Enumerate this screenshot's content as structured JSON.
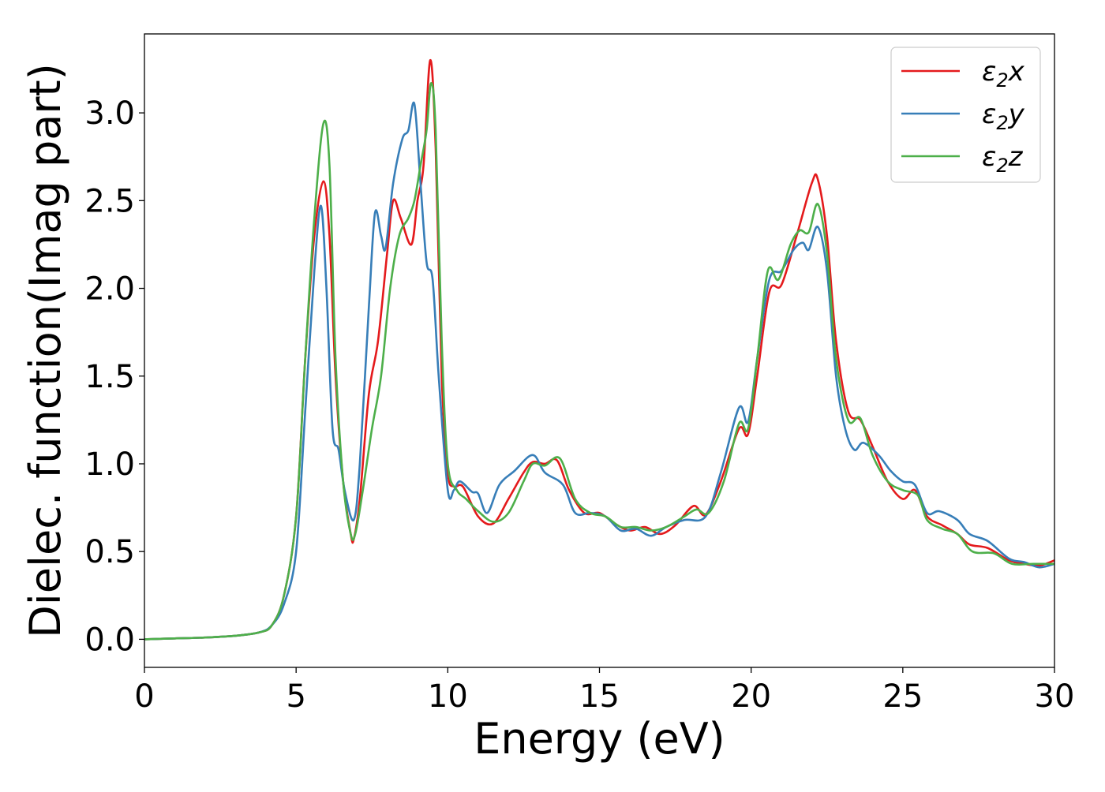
{
  "chart_data": {
    "type": "line",
    "title": "",
    "xlabel": "Energy (eV)",
    "ylabel": "Dielec. function(Imag part)",
    "xlim": [
      0,
      30
    ],
    "ylim": [
      -0.16,
      3.45
    ],
    "xticks": [
      0,
      5,
      10,
      15,
      20,
      25,
      30
    ],
    "xtick_labels": [
      "0",
      "5",
      "10",
      "15",
      "20",
      "25",
      "30"
    ],
    "yticks": [
      0.0,
      0.5,
      1.0,
      1.5,
      2.0,
      2.5,
      3.0
    ],
    "ytick_labels": [
      "0.0",
      "0.5",
      "1.0",
      "1.5",
      "2.0",
      "2.5",
      "3.0"
    ],
    "grid": false,
    "legend_position": "top-right",
    "series": [
      {
        "name": "ε₂x",
        "legend_base": "ε",
        "legend_sub": "2",
        "legend_suffix": "x",
        "color": "#e41a1c",
        "points": [
          [
            0,
            0
          ],
          [
            1,
            0.005
          ],
          [
            2,
            0.01
          ],
          [
            3,
            0.02
          ],
          [
            3.8,
            0.04
          ],
          [
            4.2,
            0.08
          ],
          [
            4.6,
            0.25
          ],
          [
            5,
            0.7
          ],
          [
            5.3,
            1.6
          ],
          [
            5.6,
            2.3
          ],
          [
            5.9,
            2.61
          ],
          [
            6.1,
            2.3
          ],
          [
            6.3,
            1.5
          ],
          [
            6.55,
            0.9
          ],
          [
            6.8,
            0.6
          ],
          [
            6.9,
            0.57
          ],
          [
            7.1,
            0.8
          ],
          [
            7.4,
            1.4
          ],
          [
            7.7,
            1.7
          ],
          [
            8.0,
            2.2
          ],
          [
            8.2,
            2.5
          ],
          [
            8.45,
            2.4
          ],
          [
            8.8,
            2.25
          ],
          [
            9.0,
            2.5
          ],
          [
            9.2,
            2.7
          ],
          [
            9.42,
            3.3
          ],
          [
            9.6,
            2.8
          ],
          [
            9.8,
            1.5
          ],
          [
            10.0,
            0.95
          ],
          [
            10.2,
            0.87
          ],
          [
            10.5,
            0.87
          ],
          [
            11.0,
            0.7
          ],
          [
            11.5,
            0.66
          ],
          [
            12.0,
            0.8
          ],
          [
            12.5,
            0.95
          ],
          [
            12.8,
            1.01
          ],
          [
            13.2,
            1.0
          ],
          [
            13.6,
            1.02
          ],
          [
            14.0,
            0.85
          ],
          [
            14.5,
            0.72
          ],
          [
            15.0,
            0.72
          ],
          [
            15.5,
            0.66
          ],
          [
            16.0,
            0.62
          ],
          [
            16.5,
            0.64
          ],
          [
            17.0,
            0.6
          ],
          [
            17.5,
            0.65
          ],
          [
            18.1,
            0.76
          ],
          [
            18.5,
            0.71
          ],
          [
            19.0,
            0.9
          ],
          [
            19.6,
            1.2
          ],
          [
            19.9,
            1.17
          ],
          [
            20.2,
            1.5
          ],
          [
            20.6,
            1.98
          ],
          [
            21.0,
            2.02
          ],
          [
            21.5,
            2.3
          ],
          [
            22.0,
            2.6
          ],
          [
            22.2,
            2.62
          ],
          [
            22.5,
            2.3
          ],
          [
            22.8,
            1.7
          ],
          [
            23.2,
            1.3
          ],
          [
            23.6,
            1.25
          ],
          [
            24.0,
            1.1
          ],
          [
            24.5,
            0.9
          ],
          [
            25.0,
            0.8
          ],
          [
            25.4,
            0.85
          ],
          [
            25.8,
            0.7
          ],
          [
            26.3,
            0.65
          ],
          [
            26.8,
            0.6
          ],
          [
            27.2,
            0.54
          ],
          [
            27.8,
            0.52
          ],
          [
            28.5,
            0.45
          ],
          [
            29.0,
            0.43
          ],
          [
            29.5,
            0.42
          ],
          [
            30,
            0.45
          ]
        ]
      },
      {
        "name": "ε₂y",
        "legend_base": "ε",
        "legend_sub": "2",
        "legend_suffix": "y",
        "color": "#377eb8",
        "points": [
          [
            0,
            0
          ],
          [
            1,
            0.005
          ],
          [
            2,
            0.01
          ],
          [
            3,
            0.02
          ],
          [
            3.8,
            0.04
          ],
          [
            4.2,
            0.08
          ],
          [
            4.6,
            0.2
          ],
          [
            5,
            0.5
          ],
          [
            5.3,
            1.3
          ],
          [
            5.6,
            2.1
          ],
          [
            5.82,
            2.47
          ],
          [
            6.0,
            2.0
          ],
          [
            6.2,
            1.2
          ],
          [
            6.4,
            1.08
          ],
          [
            6.6,
            0.85
          ],
          [
            6.9,
            0.68
          ],
          [
            7.1,
            1.0
          ],
          [
            7.4,
            1.9
          ],
          [
            7.6,
            2.43
          ],
          [
            7.8,
            2.3
          ],
          [
            7.95,
            2.23
          ],
          [
            8.2,
            2.6
          ],
          [
            8.5,
            2.85
          ],
          [
            8.7,
            2.9
          ],
          [
            8.9,
            3.05
          ],
          [
            9.1,
            2.6
          ],
          [
            9.3,
            2.15
          ],
          [
            9.5,
            2.05
          ],
          [
            9.7,
            1.5
          ],
          [
            10.0,
            0.85
          ],
          [
            10.2,
            0.85
          ],
          [
            10.4,
            0.9
          ],
          [
            10.8,
            0.84
          ],
          [
            11.0,
            0.83
          ],
          [
            11.3,
            0.72
          ],
          [
            11.7,
            0.88
          ],
          [
            12.2,
            0.96
          ],
          [
            12.8,
            1.05
          ],
          [
            13.2,
            0.95
          ],
          [
            13.8,
            0.88
          ],
          [
            14.2,
            0.72
          ],
          [
            14.7,
            0.72
          ],
          [
            15.2,
            0.7
          ],
          [
            15.7,
            0.62
          ],
          [
            16.2,
            0.63
          ],
          [
            16.7,
            0.59
          ],
          [
            17.2,
            0.64
          ],
          [
            17.8,
            0.68
          ],
          [
            18.5,
            0.7
          ],
          [
            19.0,
            0.95
          ],
          [
            19.6,
            1.32
          ],
          [
            19.9,
            1.24
          ],
          [
            20.2,
            1.6
          ],
          [
            20.6,
            2.05
          ],
          [
            21.0,
            2.1
          ],
          [
            21.4,
            2.22
          ],
          [
            21.7,
            2.26
          ],
          [
            21.9,
            2.22
          ],
          [
            22.2,
            2.35
          ],
          [
            22.5,
            2.1
          ],
          [
            22.8,
            1.5
          ],
          [
            23.1,
            1.2
          ],
          [
            23.4,
            1.08
          ],
          [
            23.7,
            1.12
          ],
          [
            24.2,
            1.05
          ],
          [
            24.6,
            0.96
          ],
          [
            25.0,
            0.9
          ],
          [
            25.4,
            0.88
          ],
          [
            25.8,
            0.72
          ],
          [
            26.2,
            0.73
          ],
          [
            26.8,
            0.68
          ],
          [
            27.2,
            0.6
          ],
          [
            27.8,
            0.56
          ],
          [
            28.5,
            0.46
          ],
          [
            29.0,
            0.44
          ],
          [
            29.5,
            0.41
          ],
          [
            30,
            0.43
          ]
        ]
      },
      {
        "name": "ε₂z",
        "legend_base": "ε",
        "legend_sub": "2",
        "legend_suffix": "z",
        "color": "#4daf4a",
        "points": [
          [
            0,
            0
          ],
          [
            1,
            0.005
          ],
          [
            2,
            0.01
          ],
          [
            3,
            0.02
          ],
          [
            3.8,
            0.04
          ],
          [
            4.2,
            0.08
          ],
          [
            4.6,
            0.25
          ],
          [
            5,
            0.7
          ],
          [
            5.3,
            1.6
          ],
          [
            5.6,
            2.4
          ],
          [
            5.9,
            2.94
          ],
          [
            6.1,
            2.7
          ],
          [
            6.3,
            1.6
          ],
          [
            6.55,
            0.9
          ],
          [
            6.8,
            0.6
          ],
          [
            6.95,
            0.6
          ],
          [
            7.2,
            0.85
          ],
          [
            7.5,
            1.2
          ],
          [
            7.8,
            1.5
          ],
          [
            8.1,
            2.0
          ],
          [
            8.4,
            2.3
          ],
          [
            8.7,
            2.4
          ],
          [
            8.9,
            2.5
          ],
          [
            9.1,
            2.7
          ],
          [
            9.3,
            2.9
          ],
          [
            9.45,
            3.17
          ],
          [
            9.6,
            2.9
          ],
          [
            9.8,
            1.7
          ],
          [
            10.0,
            1.0
          ],
          [
            10.3,
            0.85
          ],
          [
            10.6,
            0.8
          ],
          [
            11.0,
            0.73
          ],
          [
            11.5,
            0.67
          ],
          [
            12.0,
            0.72
          ],
          [
            12.5,
            0.9
          ],
          [
            12.8,
            1.0
          ],
          [
            13.2,
            0.99
          ],
          [
            13.7,
            1.03
          ],
          [
            14.2,
            0.8
          ],
          [
            14.7,
            0.72
          ],
          [
            15.2,
            0.7
          ],
          [
            15.7,
            0.64
          ],
          [
            16.2,
            0.64
          ],
          [
            16.7,
            0.62
          ],
          [
            17.2,
            0.64
          ],
          [
            17.8,
            0.7
          ],
          [
            18.2,
            0.74
          ],
          [
            18.6,
            0.72
          ],
          [
            19.1,
            0.9
          ],
          [
            19.6,
            1.23
          ],
          [
            19.9,
            1.2
          ],
          [
            20.2,
            1.6
          ],
          [
            20.55,
            2.1
          ],
          [
            20.9,
            2.05
          ],
          [
            21.3,
            2.25
          ],
          [
            21.6,
            2.33
          ],
          [
            21.9,
            2.32
          ],
          [
            22.2,
            2.48
          ],
          [
            22.5,
            2.2
          ],
          [
            22.8,
            1.6
          ],
          [
            23.2,
            1.25
          ],
          [
            23.6,
            1.26
          ],
          [
            24.0,
            1.05
          ],
          [
            24.5,
            0.9
          ],
          [
            25.0,
            0.85
          ],
          [
            25.5,
            0.82
          ],
          [
            25.8,
            0.68
          ],
          [
            26.3,
            0.63
          ],
          [
            26.8,
            0.6
          ],
          [
            27.3,
            0.5
          ],
          [
            28.0,
            0.49
          ],
          [
            28.6,
            0.43
          ],
          [
            29.3,
            0.43
          ],
          [
            30,
            0.43
          ]
        ]
      }
    ]
  }
}
